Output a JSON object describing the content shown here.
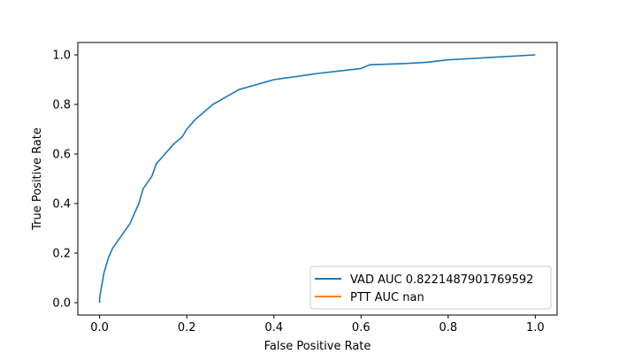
{
  "chart_data": {
    "type": "line",
    "xlabel": "False Positive Rate",
    "ylabel": "True Positive Rate",
    "xlim": [
      -0.05,
      1.05
    ],
    "ylim": [
      -0.05,
      1.05
    ],
    "xticks": [
      "0.0",
      "0.2",
      "0.4",
      "0.6",
      "0.8",
      "1.0"
    ],
    "yticks": [
      "0.0",
      "0.2",
      "0.4",
      "0.6",
      "0.8",
      "1.0"
    ],
    "grid": false,
    "legend_position": "lower-right",
    "series": [
      {
        "name": "VAD AUC 0.8221487901769592",
        "color": "#1f77b4",
        "x": [
          0.0,
          0.0,
          0.005,
          0.01,
          0.02,
          0.03,
          0.05,
          0.07,
          0.08,
          0.09,
          0.1,
          0.12,
          0.13,
          0.15,
          0.17,
          0.19,
          0.2,
          0.22,
          0.24,
          0.26,
          0.28,
          0.3,
          0.32,
          0.35,
          0.38,
          0.4,
          0.42,
          0.45,
          0.48,
          0.5,
          0.55,
          0.6,
          0.62,
          0.7,
          0.75,
          0.8,
          0.9,
          1.0
        ],
        "y": [
          0.0,
          0.02,
          0.07,
          0.12,
          0.18,
          0.22,
          0.27,
          0.32,
          0.36,
          0.4,
          0.46,
          0.51,
          0.56,
          0.6,
          0.64,
          0.67,
          0.7,
          0.74,
          0.77,
          0.8,
          0.82,
          0.84,
          0.86,
          0.875,
          0.89,
          0.9,
          0.905,
          0.912,
          0.92,
          0.925,
          0.935,
          0.945,
          0.96,
          0.965,
          0.97,
          0.98,
          0.99,
          1.0
        ]
      },
      {
        "name": "PTT AUC nan",
        "color": "#ff7f0e",
        "x": [],
        "y": []
      }
    ]
  }
}
